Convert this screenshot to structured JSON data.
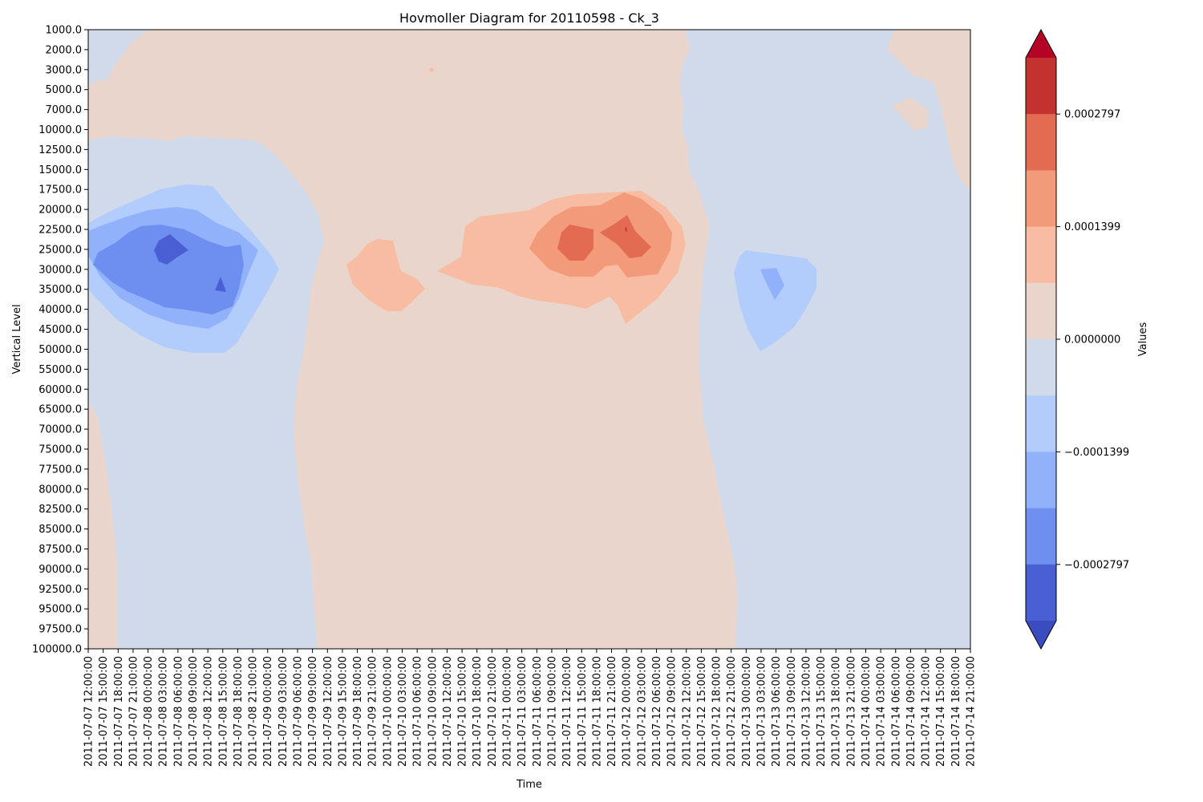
{
  "chart_data": {
    "type": "heatmap",
    "subtype": "filled-contour",
    "title": "Hovmoller Diagram for 20110598 - Ck_3",
    "xlabel": "Time",
    "ylabel": "Vertical Level",
    "colorbar_label": "Values",
    "x_ticks": [
      "2011-07-07 12:00:00",
      "2011-07-07 15:00:00",
      "2011-07-07 18:00:00",
      "2011-07-07 21:00:00",
      "2011-07-08 00:00:00",
      "2011-07-08 03:00:00",
      "2011-07-08 06:00:00",
      "2011-07-08 09:00:00",
      "2011-07-08 12:00:00",
      "2011-07-08 15:00:00",
      "2011-07-08 18:00:00",
      "2011-07-08 21:00:00",
      "2011-07-09 00:00:00",
      "2011-07-09 03:00:00",
      "2011-07-09 06:00:00",
      "2011-07-09 09:00:00",
      "2011-07-09 12:00:00",
      "2011-07-09 15:00:00",
      "2011-07-09 18:00:00",
      "2011-07-09 21:00:00",
      "2011-07-10 00:00:00",
      "2011-07-10 03:00:00",
      "2011-07-10 06:00:00",
      "2011-07-10 09:00:00",
      "2011-07-10 12:00:00",
      "2011-07-10 15:00:00",
      "2011-07-10 18:00:00",
      "2011-07-10 21:00:00",
      "2011-07-11 00:00:00",
      "2011-07-11 03:00:00",
      "2011-07-11 06:00:00",
      "2011-07-11 09:00:00",
      "2011-07-11 12:00:00",
      "2011-07-11 15:00:00",
      "2011-07-11 18:00:00",
      "2011-07-11 21:00:00",
      "2011-07-12 00:00:00",
      "2011-07-12 03:00:00",
      "2011-07-12 06:00:00",
      "2011-07-12 09:00:00",
      "2011-07-12 12:00:00",
      "2011-07-12 15:00:00",
      "2011-07-12 18:00:00",
      "2011-07-12 21:00:00",
      "2011-07-13 00:00:00",
      "2011-07-13 03:00:00",
      "2011-07-13 06:00:00",
      "2011-07-13 09:00:00",
      "2011-07-13 12:00:00",
      "2011-07-13 15:00:00",
      "2011-07-13 18:00:00",
      "2011-07-13 21:00:00",
      "2011-07-14 00:00:00",
      "2011-07-14 03:00:00",
      "2011-07-14 06:00:00",
      "2011-07-14 09:00:00",
      "2011-07-14 12:00:00",
      "2011-07-14 15:00:00",
      "2011-07-14 18:00:00",
      "2011-07-14 21:00:00"
    ],
    "y_ticks": [
      "1000.0",
      "2000.0",
      "3000.0",
      "5000.0",
      "7000.0",
      "10000.0",
      "12500.0",
      "15000.0",
      "17500.0",
      "20000.0",
      "22500.0",
      "25000.0",
      "30000.0",
      "35000.0",
      "40000.0",
      "45000.0",
      "50000.0",
      "55000.0",
      "60000.0",
      "65000.0",
      "70000.0",
      "75000.0",
      "77500.0",
      "80000.0",
      "82500.0",
      "85000.0",
      "87500.0",
      "90000.0",
      "92500.0",
      "95000.0",
      "97500.0",
      "100000.0"
    ],
    "y_inverted": true,
    "colorbar_ticks": [
      "0.0002797",
      "0.0001399",
      "0.0000000",
      "−0.0001399",
      "−0.0002797"
    ],
    "levels": [
      -0.00034964,
      -0.00027971,
      -0.00020978,
      -0.00013985,
      -6.993e-05,
      0,
      6.993e-05,
      0.00013985,
      0.00020978,
      0.00027971,
      0.00034964
    ],
    "extend": "both",
    "level_colors": [
      "#3b4cc0",
      "#4a5fd4",
      "#6e8ef0",
      "#91b1fb",
      "#b2ccfb",
      "#d0daea",
      "#e9d5cb",
      "#f7bca1",
      "#f29a79",
      "#e26b51",
      "#c43230",
      "#b40426"
    ],
    "approx_grid": {
      "x_index": [
        0,
        5,
        10,
        15,
        20,
        25,
        30,
        35,
        40,
        45,
        50,
        55,
        59
      ],
      "levels": [
        "1000.0",
        "7000.0",
        "17500.0",
        "25000.0",
        "35000.0",
        "50000.0",
        "65000.0",
        "85000.0",
        "100000.0"
      ],
      "z": [
        [
          -3e-05,
          3e-05,
          3e-05,
          3e-05,
          3e-05,
          3e-05,
          3e-05,
          3e-05,
          3e-05,
          -3e-05,
          -3e-05,
          -3e-05,
          3e-05
        ],
        [
          3e-05,
          3e-05,
          -3e-05,
          -3e-05,
          3e-05,
          3e-05,
          3e-05,
          3e-05,
          3e-05,
          -3e-05,
          -3e-05,
          -3e-05,
          -3e-05
        ],
        [
          -3e-05,
          -0.0001,
          -3e-05,
          -3e-05,
          3e-05,
          3e-05,
          3e-05,
          0.0001,
          0.0001,
          -3e-05,
          -3e-05,
          -3e-05,
          -3e-05
        ],
        [
          -0.0001,
          -0.00031,
          -0.0001,
          -3e-05,
          0.0001,
          3e-05,
          0.00017,
          0.00024,
          0.00017,
          -3e-05,
          -0.0001,
          -3e-05,
          -3e-05
        ],
        [
          -0.00017,
          -0.00024,
          -0.0001,
          -3e-05,
          0.0001,
          3e-05,
          0.0001,
          0.0001,
          0.0001,
          -3e-05,
          -0.00017,
          -3e-05,
          -3e-05
        ],
        [
          -3e-05,
          -0.0001,
          -3e-05,
          3e-05,
          3e-05,
          3e-05,
          3e-05,
          3e-05,
          3e-05,
          -3e-05,
          -3e-05,
          -3e-05,
          -3e-05
        ],
        [
          3e-05,
          -3e-05,
          -3e-05,
          3e-05,
          3e-05,
          3e-05,
          3e-05,
          3e-05,
          3e-05,
          -3e-05,
          -3e-05,
          -3e-05,
          -3e-05
        ],
        [
          3e-05,
          -3e-05,
          -3e-05,
          3e-05,
          3e-05,
          3e-05,
          3e-05,
          3e-05,
          3e-05,
          -3e-05,
          -3e-05,
          -3e-05,
          -3e-05
        ],
        [
          3e-05,
          -3e-05,
          -3e-05,
          3e-05,
          3e-05,
          3e-05,
          3e-05,
          3e-05,
          3e-05,
          -3e-05,
          -3e-05,
          -3e-05,
          -3e-05
        ]
      ]
    }
  }
}
